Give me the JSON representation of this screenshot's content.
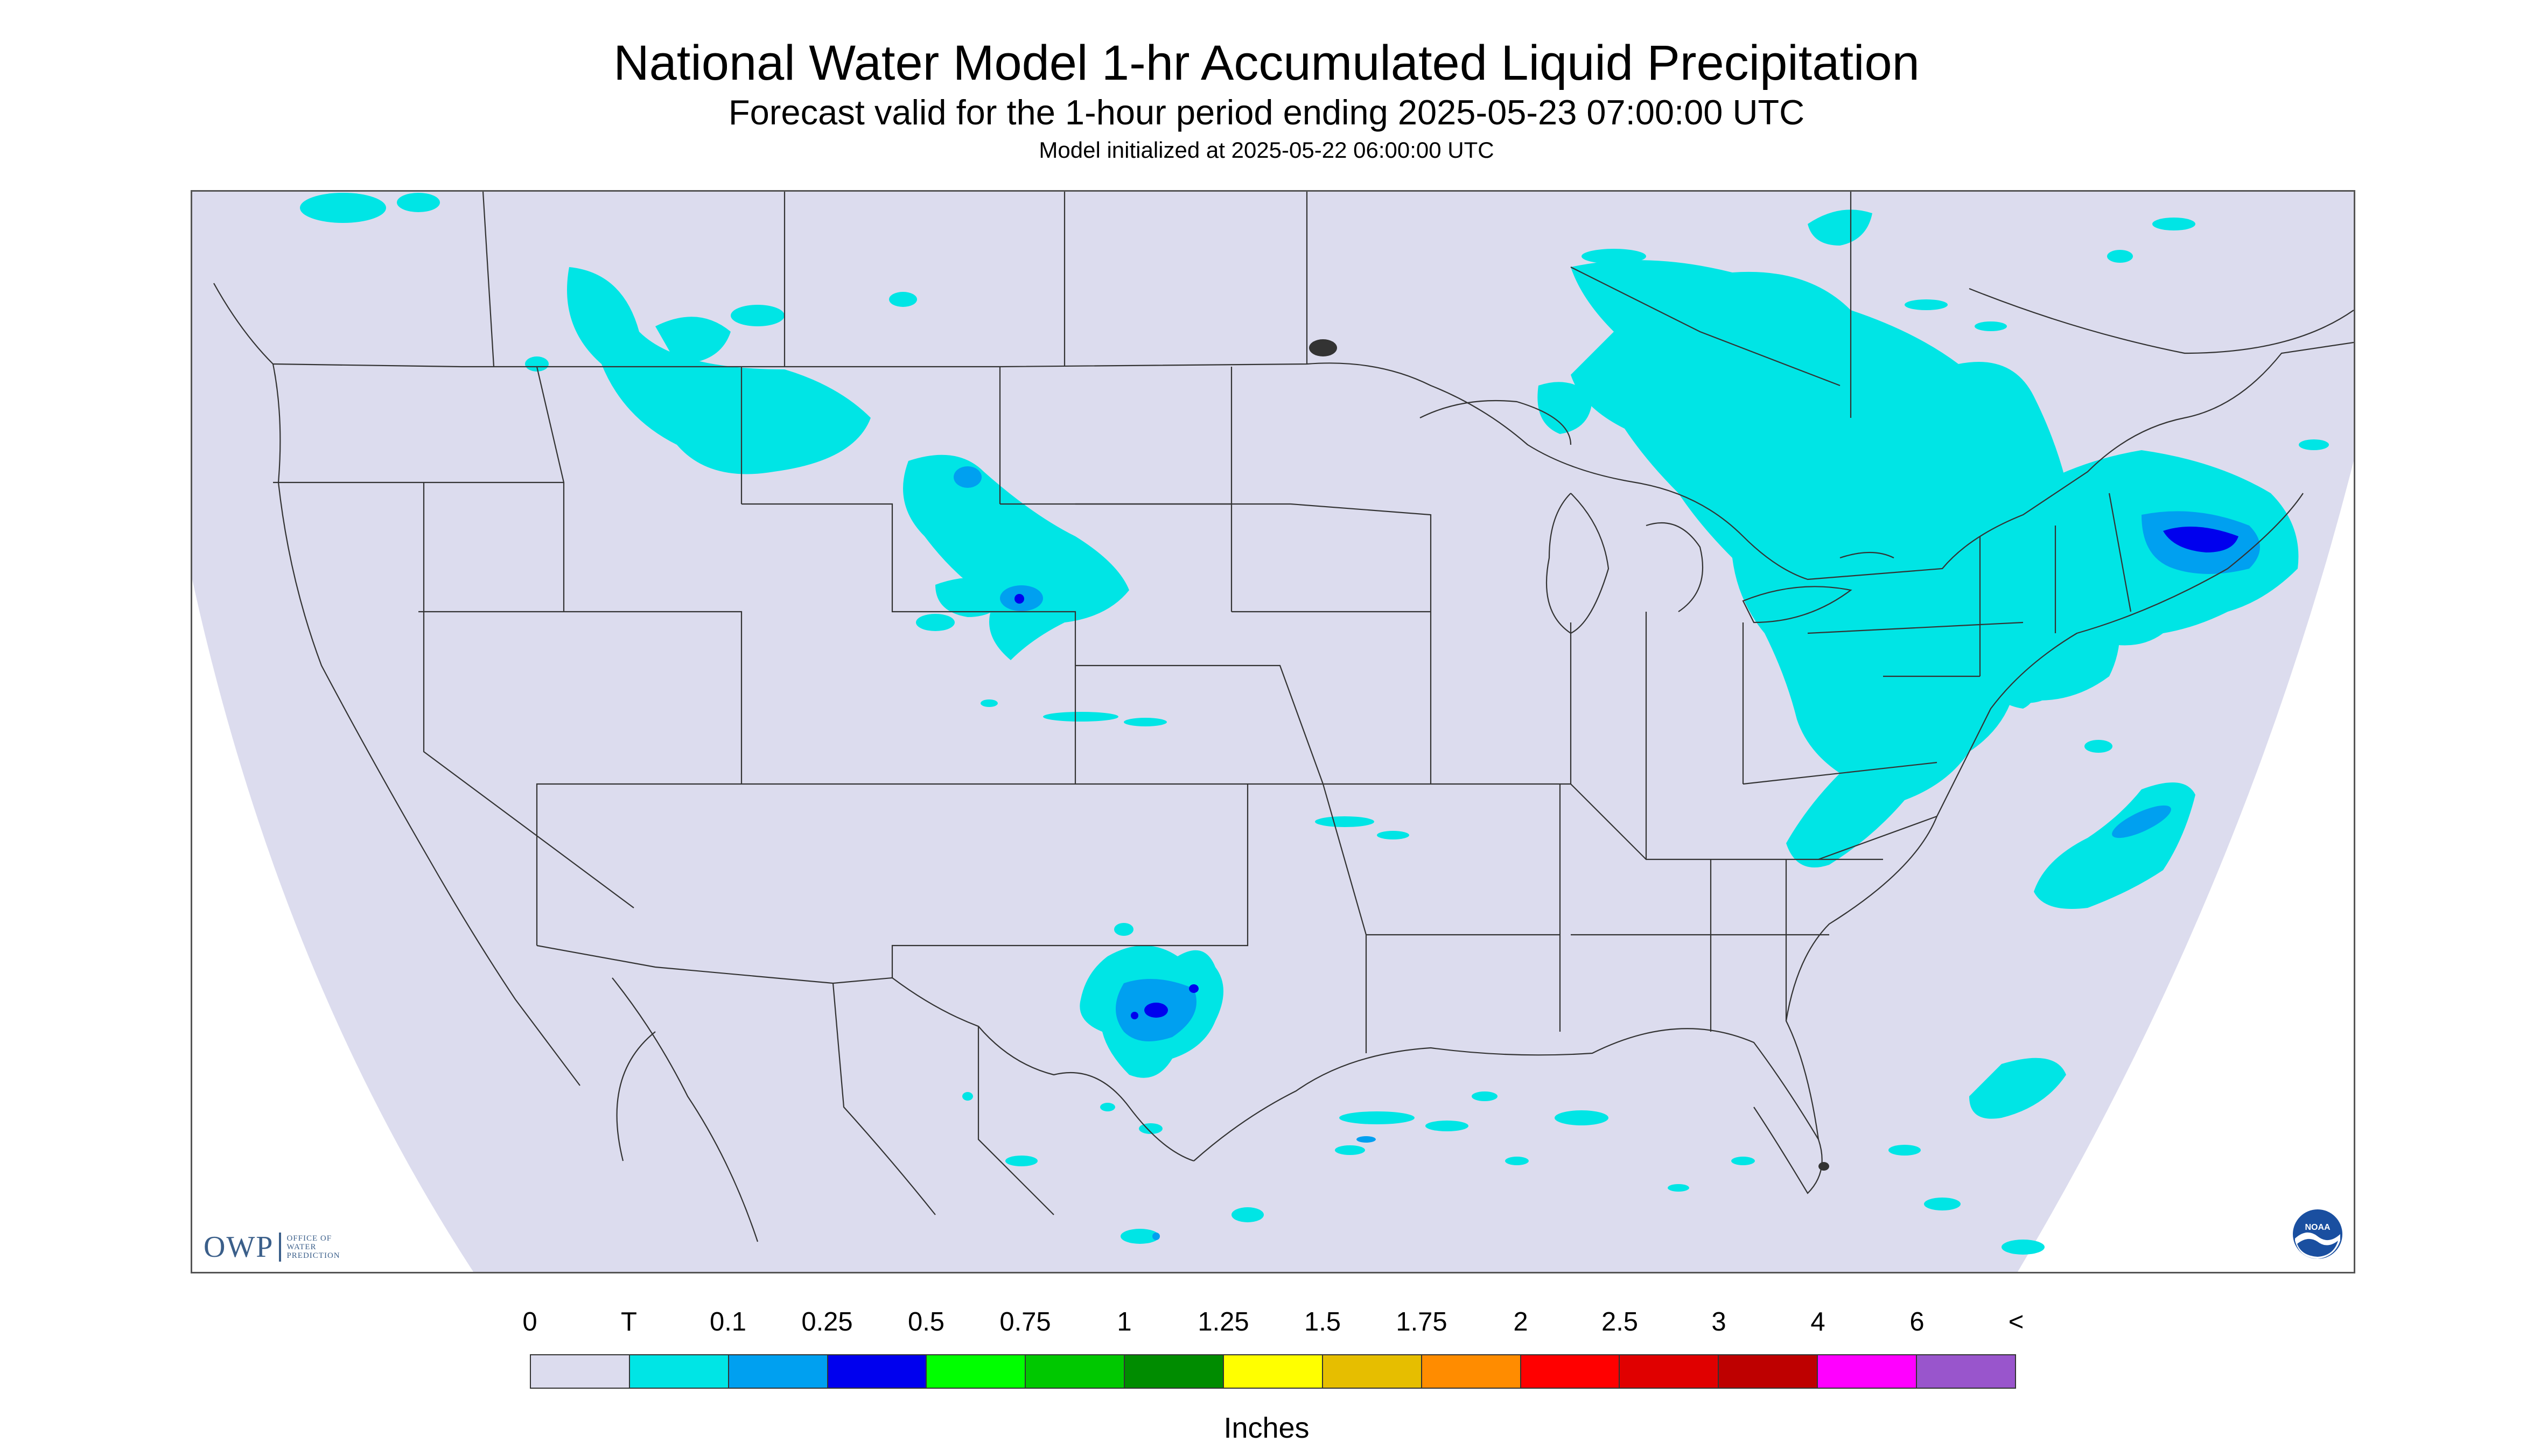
{
  "header": {
    "title": "National Water Model 1-hr Accumulated Liquid Precipitation",
    "subtitle": "Forecast valid for the 1-hour period ending 2025-05-23 07:00:00 UTC",
    "initialized": "Model initialized at 2025-05-22 06:00:00 UTC"
  },
  "map": {
    "background_color": "#dcdcee",
    "outside_color": "#ffffff",
    "boundary_color": "#333333",
    "precip_colors": {
      "trace": "#00e5e5",
      "light": "#00a0f0",
      "moderate": "#0000ee"
    }
  },
  "logos": {
    "owp": {
      "mark": "OWP",
      "lines": [
        "OFFICE OF",
        "WATER",
        "PREDICTION"
      ],
      "color": "#3b5f8a"
    },
    "noaa": {
      "text": "NOAA",
      "icon": "noaa-seal-icon"
    }
  },
  "legend": {
    "labels": [
      "0",
      "T",
      "0.1",
      "0.25",
      "0.5",
      "0.75",
      "1",
      "1.25",
      "1.5",
      "1.75",
      "2",
      "2.5",
      "3",
      "4",
      "6",
      "<"
    ],
    "colors": [
      "#dcdcee",
      "#00e5e5",
      "#00a0f0",
      "#0000ee",
      "#00ff00",
      "#00c800",
      "#008c00",
      "#ffff00",
      "#e6be00",
      "#ff8c00",
      "#ff0000",
      "#e00000",
      "#be0000",
      "#ff00ff",
      "#9955cc"
    ],
    "unit": "Inches"
  }
}
